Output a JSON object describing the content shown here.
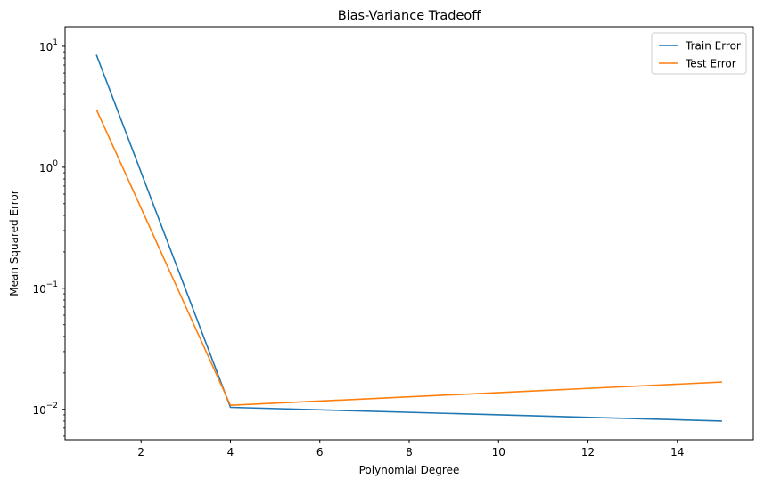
{
  "chart_data": {
    "type": "line",
    "title": "Bias-Variance Tradeoff",
    "xlabel": "Polynomial Degree",
    "ylabel": "Mean Squared Error",
    "x": [
      1,
      4,
      15
    ],
    "xlim": [
      0.3,
      15.7
    ],
    "ylim": [
      0.0056,
      14.5
    ],
    "yscale": "log",
    "xticks": [
      2,
      4,
      6,
      8,
      10,
      12,
      14
    ],
    "yticks": [
      {
        "value": 10,
        "base": "10",
        "exp": "1"
      },
      {
        "value": 1,
        "base": "10",
        "exp": "0"
      },
      {
        "value": 0.1,
        "base": "10",
        "exp": "−1"
      },
      {
        "value": 0.01,
        "base": "10",
        "exp": "−2"
      }
    ],
    "series": [
      {
        "name": "Train Error",
        "color": "#1f77b4",
        "values": [
          8.5,
          0.0104,
          0.008
        ]
      },
      {
        "name": "Test Error",
        "color": "#ff7f0e",
        "values": [
          3.0,
          0.0108,
          0.0168
        ]
      }
    ],
    "legend": "top-right",
    "grid": false
  }
}
